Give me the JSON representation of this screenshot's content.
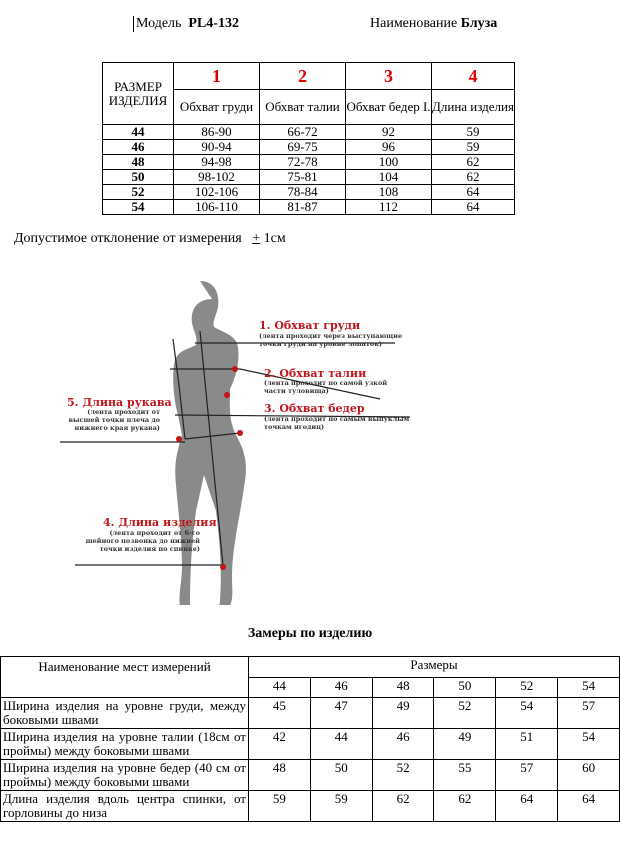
{
  "header": {
    "model_label": "Модель",
    "model_value": "PL4-132",
    "name_label": "Наименование",
    "name_value": "Блуза"
  },
  "size_table": {
    "size_header": "РАЗМЕР ИЗДЕЛИЯ",
    "columns": [
      {
        "num": "1",
        "label": "Обхват груди"
      },
      {
        "num": "2",
        "label": "Обхват талии"
      },
      {
        "num": "3",
        "label": "Обхват бедер I."
      },
      {
        "num": "4",
        "label": "Длина изделия"
      }
    ],
    "rows": [
      [
        "44",
        "86-90",
        "66-72",
        "92",
        "59"
      ],
      [
        "46",
        "90-94",
        "69-75",
        "96",
        "59"
      ],
      [
        "48",
        "94-98",
        "72-78",
        "100",
        "62"
      ],
      [
        "50",
        "98-102",
        "75-81",
        "104",
        "62"
      ],
      [
        "52",
        "102-106",
        "78-84",
        "108",
        "64"
      ],
      [
        "54",
        "106-110",
        "81-87",
        "112",
        "64"
      ]
    ]
  },
  "tolerance": {
    "text": "Допустимое отклонение от измерения",
    "value_sign": "+",
    "value": "1см"
  },
  "figure": {
    "m1_title": "1. Обхват груди",
    "m1_desc": "(лента проходит через выступающие точки груди на уровне лопаток)",
    "m2_title": "2. Обхват талии",
    "m2_desc": "(лента проходит по самой узкой части туловища)",
    "m3_title": "3. Обхват бедер",
    "m3_desc": "(лента проходит по самым выпуклым точкам ягодиц)",
    "m4_title": "4. Длина изделия",
    "m4_desc": "(лента проходит от 6-го шейного позвонка до нижней точки изделия по спинке)",
    "m5_title": "5. Длина рукава",
    "m5_desc": "(лента проходит от высшей точки плеча до нижнего края рукава)",
    "accent": "#c0161c"
  },
  "product_table": {
    "title": "Замеры по изделию",
    "name_header": "Наименование мест измерений",
    "sizes_header": "Размеры",
    "sizes": [
      "44",
      "46",
      "48",
      "50",
      "52",
      "54"
    ],
    "rows": [
      {
        "label": "Ширина изделия на уровне груди, между боковыми швами",
        "values": [
          "45",
          "47",
          "49",
          "52",
          "54",
          "57"
        ]
      },
      {
        "label": "Ширина изделия на уровне талии (18см от проймы) между боковыми швами",
        "values": [
          "42",
          "44",
          "46",
          "49",
          "51",
          "54"
        ]
      },
      {
        "label": "Ширина изделия на уровне бедер (40 см от проймы) между боковыми швами",
        "values": [
          "48",
          "50",
          "52",
          "55",
          "57",
          "60"
        ]
      },
      {
        "label": "Длина изделия вдоль центра спинки, от горловины до низа",
        "values": [
          "59",
          "59",
          "62",
          "62",
          "64",
          "64"
        ]
      }
    ]
  }
}
